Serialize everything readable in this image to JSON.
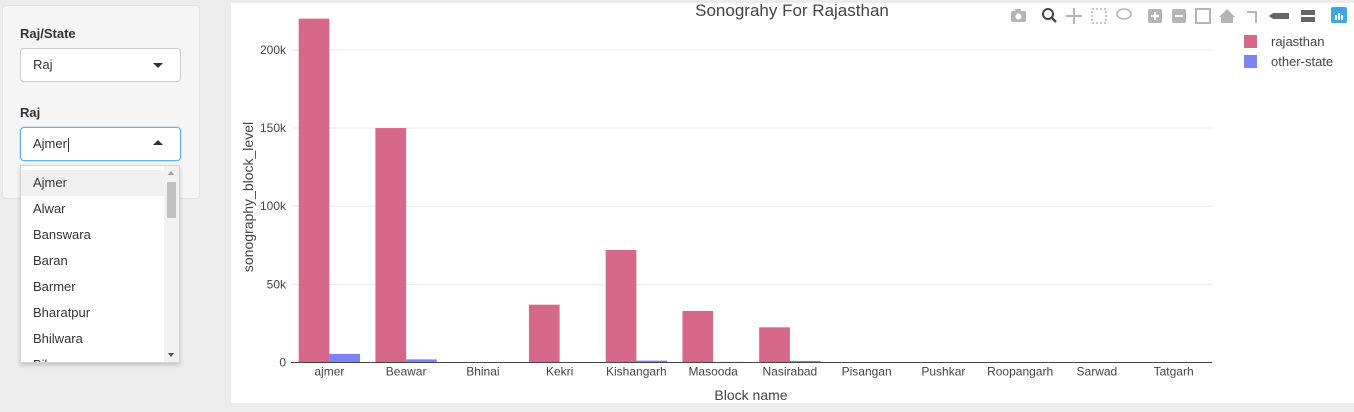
{
  "sidebar": {
    "state_label": "Raj/State",
    "state_value": "Raj",
    "district_label": "Raj",
    "district_value": "Ajmer",
    "options": [
      "Ajmer",
      "Alwar",
      "Banswara",
      "Baran",
      "Barmer",
      "Bharatpur",
      "Bhilwara",
      "Bikaner"
    ]
  },
  "modebar": {
    "icons": [
      "camera-icon",
      "zoom-icon",
      "pan-icon",
      "box-select-icon",
      "lasso-select-icon",
      "zoom-in-icon",
      "zoom-out-icon",
      "autoscale-icon",
      "reset-axes-icon",
      "spike-lines-icon",
      "hover-closest-icon",
      "hover-compare-icon",
      "plotly-logo-icon"
    ]
  },
  "chart_data": {
    "type": "bar",
    "title": "Sonograhy For Rajasthan",
    "xlabel": "Block name",
    "ylabel": "sonography_block_level",
    "categories": [
      "ajmer",
      "Beawar",
      "Bhinai",
      "Kekri",
      "Kishangarh",
      "Masooda",
      "Nasirabad",
      "Pisangan",
      "Pushkar",
      "Roopangarh",
      "Sarwad",
      "Tatgarh"
    ],
    "series": [
      {
        "name": "rajasthan",
        "color": "#d6698a",
        "values": [
          220000,
          150000,
          0,
          37000,
          72000,
          33000,
          22500,
          0,
          0,
          0,
          0,
          0
        ]
      },
      {
        "name": "other-state",
        "color": "#7b84f0",
        "values": [
          5500,
          2000,
          0,
          300,
          1200,
          400,
          1000,
          0,
          0,
          0,
          0,
          0
        ]
      }
    ],
    "ylim": [
      0,
      230000
    ],
    "yticks": [
      0,
      50000,
      100000,
      150000,
      200000
    ],
    "ytick_labels": [
      "0",
      "50k",
      "100k",
      "150k",
      "200k"
    ],
    "grid": true,
    "legend": "top-right"
  }
}
